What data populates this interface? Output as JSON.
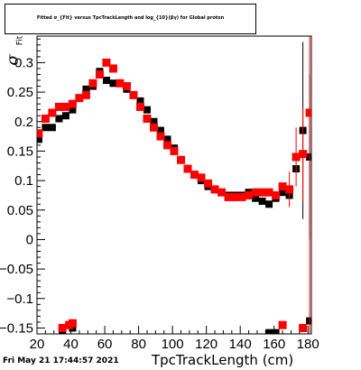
{
  "title": "Fitted σ_{Fit} versus TpcTrackLength and log_{10}(βγ) for Global proton",
  "footer_date": "Fri May 21 17:44:57 2021",
  "chart_data": {
    "type": "scatter",
    "xlabel": "TpcTrackLength (cm)",
    "ylabel_symbol": "σ",
    "ylabel_subscript": "Fit",
    "xlim": [
      20,
      182
    ],
    "ylim": [
      -0.16,
      0.345
    ],
    "xticks": [
      20,
      40,
      60,
      80,
      100,
      120,
      140,
      160,
      180
    ],
    "yticks": [
      -0.15,
      -0.1,
      -0.05,
      0,
      0.05,
      0.1,
      0.15,
      0.2,
      0.25,
      0.3
    ],
    "ytick_labels": [
      "−0.15",
      "−0.1",
      "−0.05",
      "0",
      "0.05",
      "0.1",
      "0.15",
      "0.2",
      "0.25",
      "0.3"
    ],
    "series": [
      {
        "color": "#000000",
        "points": [
          [
            21,
            0.17
          ],
          [
            25,
            0.19
          ],
          [
            29,
            0.19
          ],
          [
            33,
            0.205
          ],
          [
            37,
            0.21
          ],
          [
            41,
            0.22
          ],
          [
            45,
            0.24
          ],
          [
            49,
            0.255
          ],
          [
            53,
            0.26
          ],
          [
            57,
            0.285
          ],
          [
            61,
            0.27
          ],
          [
            65,
            0.265
          ],
          [
            69,
            0.265
          ],
          [
            73,
            0.255
          ],
          [
            77,
            0.245
          ],
          [
            81,
            0.235
          ],
          [
            85,
            0.22
          ],
          [
            89,
            0.2
          ],
          [
            93,
            0.185
          ],
          [
            97,
            0.17
          ],
          [
            101,
            0.155
          ],
          [
            105,
            0.135
          ],
          [
            109,
            0.12
          ],
          [
            113,
            0.11
          ],
          [
            117,
            0.1
          ],
          [
            121,
            0.09
          ],
          [
            125,
            0.085
          ],
          [
            129,
            0.08
          ],
          [
            133,
            0.075
          ],
          [
            137,
            0.075
          ],
          [
            141,
            0.075
          ],
          [
            145,
            0.08
          ],
          [
            149,
            0.07
          ],
          [
            153,
            0.065
          ],
          [
            157,
            0.06
          ],
          [
            161,
            0.07
          ],
          [
            165,
            0.08
          ],
          [
            169,
            0.075
          ],
          [
            173,
            0.12
          ],
          [
            177,
            0.185
          ],
          [
            181,
            0.14
          ],
          [
            35,
            -0.155
          ],
          [
            41,
            -0.15
          ],
          [
            157,
            -0.158
          ],
          [
            161,
            -0.158
          ],
          [
            181,
            -0.138
          ]
        ],
        "error_bars": [
          [
            177,
            0.185,
            0.15
          ],
          [
            181,
            0.14,
            0.14
          ]
        ]
      },
      {
        "color": "#ff0000",
        "points": [
          [
            21,
            0.18
          ],
          [
            25,
            0.205
          ],
          [
            29,
            0.215
          ],
          [
            33,
            0.225
          ],
          [
            37,
            0.225
          ],
          [
            41,
            0.23
          ],
          [
            45,
            0.24
          ],
          [
            49,
            0.245
          ],
          [
            53,
            0.265
          ],
          [
            57,
            0.28
          ],
          [
            61,
            0.3
          ],
          [
            65,
            0.29
          ],
          [
            69,
            0.265
          ],
          [
            73,
            0.26
          ],
          [
            77,
            0.245
          ],
          [
            81,
            0.225
          ],
          [
            85,
            0.205
          ],
          [
            89,
            0.19
          ],
          [
            93,
            0.175
          ],
          [
            97,
            0.16
          ],
          [
            101,
            0.15
          ],
          [
            105,
            0.135
          ],
          [
            109,
            0.12
          ],
          [
            113,
            0.11
          ],
          [
            117,
            0.105
          ],
          [
            121,
            0.095
          ],
          [
            125,
            0.085
          ],
          [
            129,
            0.08
          ],
          [
            133,
            0.072
          ],
          [
            137,
            0.072
          ],
          [
            141,
            0.072
          ],
          [
            145,
            0.075
          ],
          [
            149,
            0.08
          ],
          [
            153,
            0.08
          ],
          [
            157,
            0.08
          ],
          [
            161,
            0.075
          ],
          [
            165,
            0.09
          ],
          [
            169,
            0.085
          ],
          [
            173,
            0.14
          ],
          [
            177,
            0.145
          ],
          [
            181,
            0.215
          ],
          [
            35,
            -0.15
          ],
          [
            39,
            -0.145
          ],
          [
            41,
            -0.142
          ],
          [
            165,
            -0.145
          ],
          [
            177,
            -0.15
          ]
        ],
        "error_bars": [
          [
            169,
            0.085,
            0.03
          ],
          [
            173,
            0.14,
            0.05
          ],
          [
            177,
            0.145,
            0.08
          ],
          [
            181,
            0.215,
            0.38
          ]
        ]
      }
    ]
  }
}
